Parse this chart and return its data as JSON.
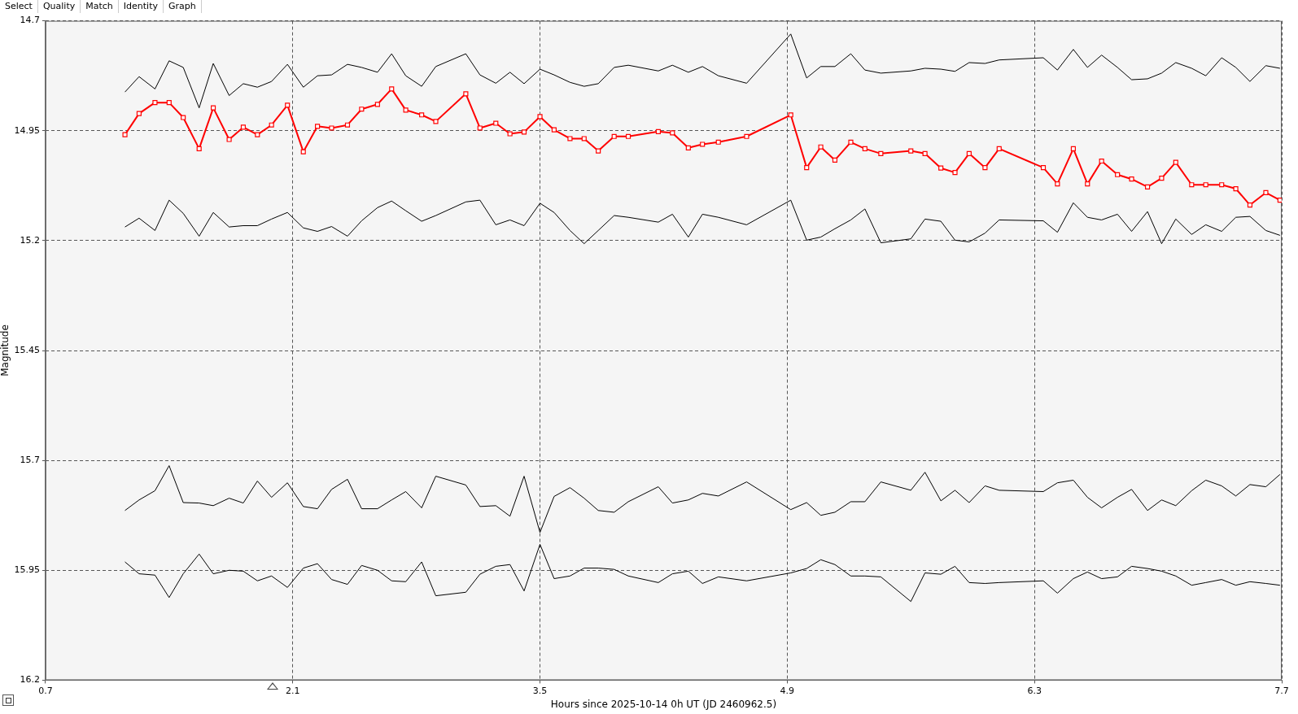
{
  "chart_data": {
    "type": "line",
    "xlabel": "Hours since 2025-10-14 0h UT (JD 2460962.5)",
    "ylabel": "Magnitude",
    "annotations": [
      "Select",
      "Quality",
      "Match",
      "Identity",
      "Graph"
    ],
    "x": [
      1.15,
      1.23,
      1.32,
      1.4,
      1.48,
      1.57,
      1.65,
      1.74,
      1.82,
      1.9,
      1.98,
      2.07,
      2.16,
      2.24,
      2.32,
      2.41,
      2.49,
      2.58,
      2.66,
      2.74,
      2.83,
      2.91,
      3.08,
      3.16,
      3.25,
      3.33,
      3.41,
      3.5,
      3.58,
      3.67,
      3.75,
      3.83,
      3.92,
      4.0,
      4.17,
      4.25,
      4.34,
      4.42,
      4.51,
      4.67,
      4.92,
      5.01,
      5.09,
      5.17,
      5.26,
      5.34,
      5.43,
      5.6,
      5.68,
      5.77,
      5.85,
      5.93,
      6.02,
      6.1,
      6.35,
      6.43,
      6.52,
      6.6,
      6.68,
      6.77,
      6.85,
      6.94,
      7.02,
      7.1,
      7.19,
      7.27,
      7.36,
      7.44,
      7.52,
      7.61,
      7.69
    ],
    "xlim": [
      0.7,
      7.7
    ],
    "xticks": [
      0.7,
      2.1,
      3.5,
      4.9,
      6.3,
      7.7
    ],
    "ylim": [
      16.2,
      14.7
    ],
    "yticks": [
      14.7,
      14.95,
      15.2,
      15.45,
      15.7,
      15.95,
      16.2
    ],
    "grid": true,
    "series": [
      {
        "color": "#000000",
        "marker": "none",
        "values": [
          14.862,
          14.827,
          14.855,
          14.791,
          14.806,
          14.898,
          14.797,
          14.87,
          14.843,
          14.851,
          14.838,
          14.799,
          14.851,
          14.825,
          14.823,
          14.799,
          14.806,
          14.817,
          14.775,
          14.825,
          14.849,
          14.804,
          14.775,
          14.823,
          14.842,
          14.817,
          14.843,
          14.81,
          14.823,
          14.84,
          14.849,
          14.843,
          14.806,
          14.801,
          14.814,
          14.801,
          14.817,
          14.804,
          14.825,
          14.842,
          14.73,
          14.83,
          14.804,
          14.804,
          14.775,
          14.812,
          14.819,
          14.814,
          14.808,
          14.81,
          14.815,
          14.795,
          14.797,
          14.789,
          14.784,
          14.812,
          14.765,
          14.806,
          14.778,
          14.806,
          14.834,
          14.832,
          14.819,
          14.795,
          14.808,
          14.825,
          14.784,
          14.806,
          14.838,
          14.802,
          14.808
        ]
      },
      {
        "color": "#ff0000",
        "marker": "square",
        "values": [
          14.959,
          14.911,
          14.886,
          14.886,
          14.92,
          14.991,
          14.898,
          14.97,
          14.942,
          14.959,
          14.937,
          14.892,
          14.998,
          14.94,
          14.944,
          14.937,
          14.901,
          14.89,
          14.855,
          14.903,
          14.914,
          14.929,
          14.866,
          14.944,
          14.933,
          14.957,
          14.953,
          14.918,
          14.948,
          14.968,
          14.968,
          14.996,
          14.963,
          14.963,
          14.952,
          14.955,
          14.989,
          14.981,
          14.976,
          14.963,
          14.914,
          15.034,
          14.987,
          15.017,
          14.976,
          14.991,
          15.002,
          14.996,
          15.002,
          15.035,
          15.045,
          15.002,
          15.034,
          14.991,
          15.034,
          15.071,
          14.991,
          15.071,
          15.019,
          15.05,
          15.06,
          15.078,
          15.058,
          15.022,
          15.073,
          15.073,
          15.073,
          15.082,
          15.119,
          15.091,
          15.108
        ]
      },
      {
        "color": "#000000",
        "marker": "none",
        "values": [
          15.169,
          15.149,
          15.177,
          15.108,
          15.138,
          15.19,
          15.136,
          15.169,
          15.166,
          15.166,
          15.151,
          15.136,
          15.171,
          15.179,
          15.168,
          15.19,
          15.155,
          15.125,
          15.11,
          15.132,
          15.156,
          15.143,
          15.112,
          15.108,
          15.164,
          15.153,
          15.166,
          15.115,
          15.136,
          15.177,
          15.207,
          15.177,
          15.143,
          15.147,
          15.158,
          15.14,
          15.192,
          15.14,
          15.147,
          15.164,
          15.108,
          15.199,
          15.192,
          15.173,
          15.153,
          15.128,
          15.205,
          15.196,
          15.151,
          15.156,
          15.199,
          15.203,
          15.183,
          15.153,
          15.155,
          15.181,
          15.114,
          15.147,
          15.153,
          15.14,
          15.179,
          15.134,
          15.207,
          15.151,
          15.186,
          15.164,
          15.179,
          15.147,
          15.145,
          15.177,
          15.188
        ]
      },
      {
        "color": "#000000",
        "marker": "none",
        "values": [
          15.814,
          15.79,
          15.769,
          15.712,
          15.796,
          15.797,
          15.803,
          15.786,
          15.797,
          15.747,
          15.784,
          15.751,
          15.805,
          15.81,
          15.766,
          15.743,
          15.81,
          15.81,
          15.79,
          15.771,
          15.808,
          15.736,
          15.756,
          15.805,
          15.803,
          15.827,
          15.736,
          15.864,
          15.782,
          15.762,
          15.786,
          15.814,
          15.818,
          15.794,
          15.76,
          15.797,
          15.79,
          15.775,
          15.781,
          15.749,
          15.812,
          15.796,
          15.825,
          15.818,
          15.794,
          15.794,
          15.749,
          15.768,
          15.727,
          15.792,
          15.768,
          15.796,
          15.758,
          15.768,
          15.771,
          15.751,
          15.745,
          15.784,
          15.808,
          15.784,
          15.766,
          15.814,
          15.79,
          15.803,
          15.769,
          15.745,
          15.758,
          15.781,
          15.755,
          15.76,
          15.732
        ]
      },
      {
        "color": "#000000",
        "marker": "none",
        "values": [
          15.931,
          15.958,
          15.961,
          16.012,
          15.958,
          15.913,
          15.958,
          15.95,
          15.952,
          15.974,
          15.963,
          15.989,
          15.945,
          15.935,
          15.971,
          15.982,
          15.939,
          15.95,
          15.974,
          15.976,
          15.931,
          16.008,
          16.0,
          15.959,
          15.941,
          15.937,
          15.997,
          15.891,
          15.969,
          15.963,
          15.945,
          15.945,
          15.948,
          15.963,
          15.978,
          15.958,
          15.952,
          15.98,
          15.965,
          15.974,
          15.956,
          15.946,
          15.926,
          15.937,
          15.963,
          15.963,
          15.965,
          16.021,
          15.956,
          15.959,
          15.941,
          15.978,
          15.98,
          15.978,
          15.974,
          16.002,
          15.969,
          15.954,
          15.969,
          15.965,
          15.941,
          15.946,
          15.952,
          15.963,
          15.984,
          15.978,
          15.971,
          15.984,
          15.976,
          15.98,
          15.984
        ]
      }
    ]
  }
}
